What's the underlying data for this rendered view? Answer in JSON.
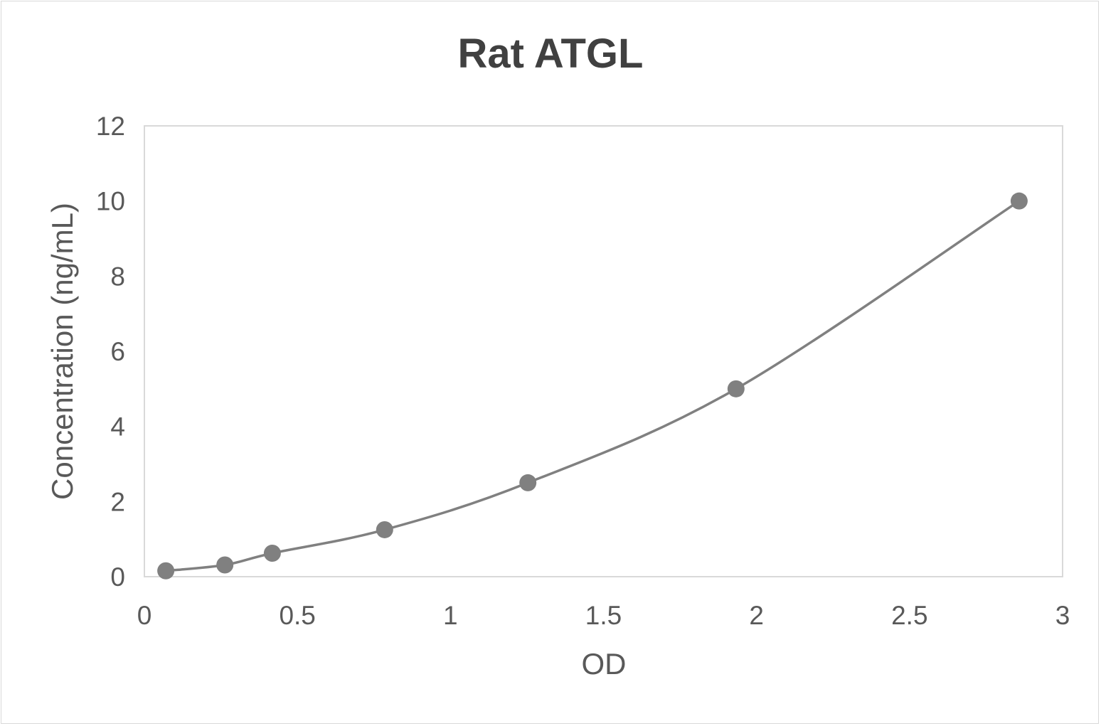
{
  "chart_data": {
    "type": "line",
    "title": "Rat ATGL",
    "xlabel": "OD",
    "ylabel": "Concentration (ng/mL)",
    "xlim": [
      0,
      3
    ],
    "ylim": [
      0,
      12
    ],
    "xticks": [
      "0",
      "0.5",
      "1",
      "1.5",
      "2",
      "2.5",
      "3"
    ],
    "yticks": [
      "0",
      "2",
      "4",
      "6",
      "8",
      "10",
      "12"
    ],
    "grid": false,
    "smooth": true,
    "markers": "circle",
    "series": [
      {
        "x": [
          0.07,
          0.263,
          0.418,
          0.785,
          1.253,
          1.933,
          2.858
        ],
        "y": [
          0.156,
          0.312,
          0.625,
          1.25,
          2.5,
          5,
          10
        ],
        "color": "#808080"
      }
    ]
  }
}
